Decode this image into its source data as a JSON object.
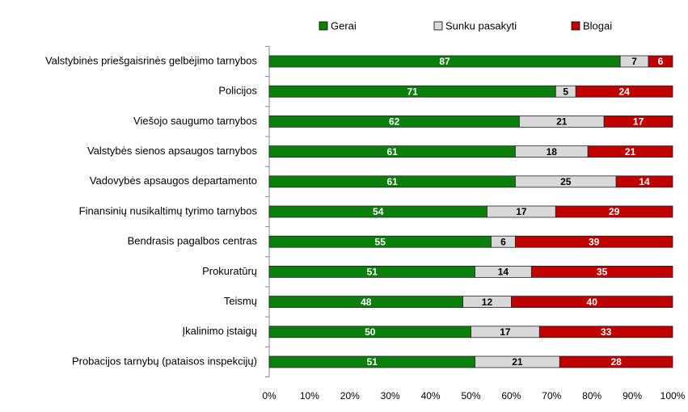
{
  "chart_data": {
    "type": "stacked_bar_horizontal",
    "categories": [
      "Valstybinės priešgaisrinės gelbėjimo tarnybos",
      "Policijos",
      "Viešojo saugumo tarnybos",
      "Valstybės sienos apsaugos tarnybos",
      "Vadovybės apsaugos departamento",
      "Finansinių nusikaltimų tyrimo tarnybos",
      "Bendrasis pagalbos centras",
      "Prokuratūrų",
      "Teismų",
      "Įkalinimo įstaigų",
      "Probacijos tarnybų (pataisos inspekcijų)"
    ],
    "series": [
      {
        "name": "Gerai",
        "color": "#0b7f0b",
        "label_color": "#ffffff",
        "values": [
          87,
          71,
          62,
          61,
          61,
          54,
          55,
          51,
          48,
          50,
          51
        ]
      },
      {
        "name": "Sunku pasakyti",
        "color": "#d9d9d9",
        "label_color": "#000000",
        "values": [
          7,
          5,
          21,
          18,
          25,
          17,
          6,
          14,
          12,
          17,
          21
        ]
      },
      {
        "name": "Blogai",
        "color": "#c00000",
        "label_color": "#ffffff",
        "values": [
          6,
          24,
          17,
          21,
          14,
          29,
          39,
          35,
          40,
          33,
          28
        ]
      }
    ],
    "xlim": [
      0,
      100
    ],
    "xticks": [
      {
        "value": 0,
        "label": "0%"
      },
      {
        "value": 10,
        "label": "10%"
      },
      {
        "value": 20,
        "label": "20%"
      },
      {
        "value": 30,
        "label": "30%"
      },
      {
        "value": 40,
        "label": "40%"
      },
      {
        "value": 50,
        "label": "50%"
      },
      {
        "value": 60,
        "label": "60%"
      },
      {
        "value": 70,
        "label": "70%"
      },
      {
        "value": 80,
        "label": "80%"
      },
      {
        "value": 90,
        "label": "90%"
      },
      {
        "value": 100,
        "label": "100%"
      }
    ],
    "legend": "top"
  }
}
